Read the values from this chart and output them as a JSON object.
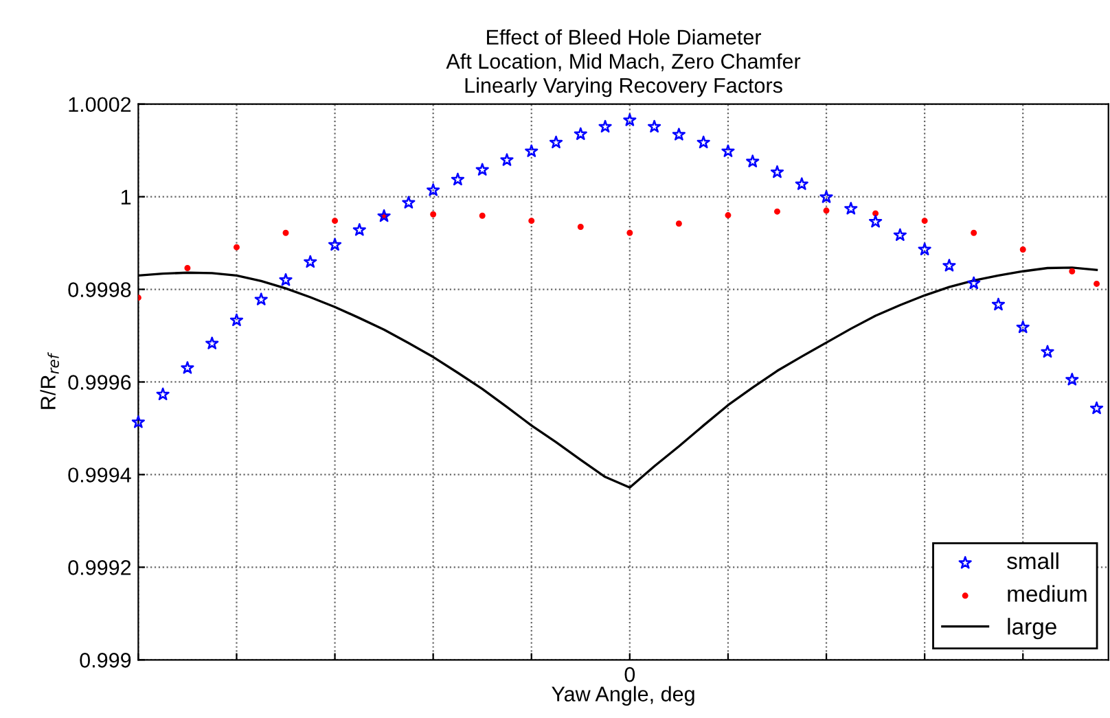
{
  "chart_data": {
    "type": "line",
    "title": "Effect of Bleed Hole Diameter\nAft Location, Mid Mach, Zero Chamfer\nLinearly Varying Recovery Factors",
    "xlabel": "Yaw Angle, deg",
    "ylabel": "R/R$_{ref}$",
    "categories": [
      null,
      null,
      null,
      null,
      null,
      null,
      null,
      null,
      null,
      null,
      null,
      null,
      null,
      null,
      null,
      null,
      null,
      null,
      null,
      null,
      "0",
      null,
      null,
      null,
      null,
      null,
      null,
      null,
      null,
      null,
      null,
      null,
      null,
      null,
      null,
      null,
      null,
      null,
      null,
      null
    ],
    "ylim": [
      0.999,
      1.0002
    ],
    "yticks": [
      {
        "value": 0.999,
        "label": "0.999"
      },
      {
        "value": 0.9992,
        "label": "0.9992"
      },
      {
        "value": 0.9994,
        "label": "0.9994"
      },
      {
        "value": 0.9996,
        "label": "0.9996"
      },
      {
        "value": 0.9998,
        "label": "0.9998"
      },
      {
        "value": 1,
        "label": "1"
      },
      {
        "value": 1.0002,
        "label": "1.0002"
      }
    ],
    "grid": true,
    "legend": "bottom right",
    "series": [
      {
        "name": "small",
        "type": "scatter",
        "marker": "star",
        "color": "#0000ff",
        "values": [
          0.999513,
          0.999573,
          0.99963,
          0.999683,
          0.999733,
          0.999778,
          0.99982,
          0.999859,
          0.999896,
          0.999928,
          0.999958,
          0.999987,
          1.000014,
          1.000037,
          1.000058,
          1.000079,
          1.000098,
          1.000117,
          1.000135,
          1.000151,
          1.000165,
          1.000151,
          1.000134,
          1.000117,
          1.000098,
          1.000076,
          1.000053,
          1.000027,
          0.999999,
          0.999974,
          0.999946,
          0.999917,
          0.999886,
          0.999851,
          0.999813,
          0.999767,
          0.999718,
          0.999665,
          0.999605,
          0.999543
        ]
      },
      {
        "name": "medium",
        "type": "scatter",
        "marker": "circle",
        "color": "#ff0000",
        "values": [
          0.999782,
          null,
          0.999846,
          null,
          0.999891,
          null,
          0.999922,
          null,
          0.999948,
          null,
          0.999958,
          null,
          0.999962,
          null,
          0.999959,
          null,
          0.999948,
          null,
          0.999935,
          null,
          0.999922,
          null,
          0.999942,
          null,
          0.99996,
          null,
          0.999968,
          null,
          0.99997,
          null,
          0.999964,
          null,
          0.999948,
          null,
          0.999922,
          null,
          0.999886,
          null,
          0.999839,
          0.999812
        ]
      },
      {
        "name": "large",
        "marker": "none",
        "line_style": "solid",
        "color": "#000000",
        "values": [
          0.99983,
          0.999834,
          0.999836,
          0.999835,
          0.99983,
          0.999818,
          0.999802,
          0.999783,
          0.999762,
          0.999738,
          0.999713,
          0.999684,
          0.999654,
          0.99962,
          0.999585,
          0.999546,
          0.999506,
          0.99947,
          0.999432,
          0.999395,
          0.999372,
          0.999418,
          0.999461,
          0.999506,
          0.99955,
          0.999588,
          0.999624,
          0.999655,
          0.999685,
          0.999715,
          0.999743,
          0.999766,
          0.999787,
          0.999805,
          0.999819,
          0.99983,
          0.999839,
          0.999846,
          0.999847,
          0.999842
        ]
      }
    ]
  }
}
